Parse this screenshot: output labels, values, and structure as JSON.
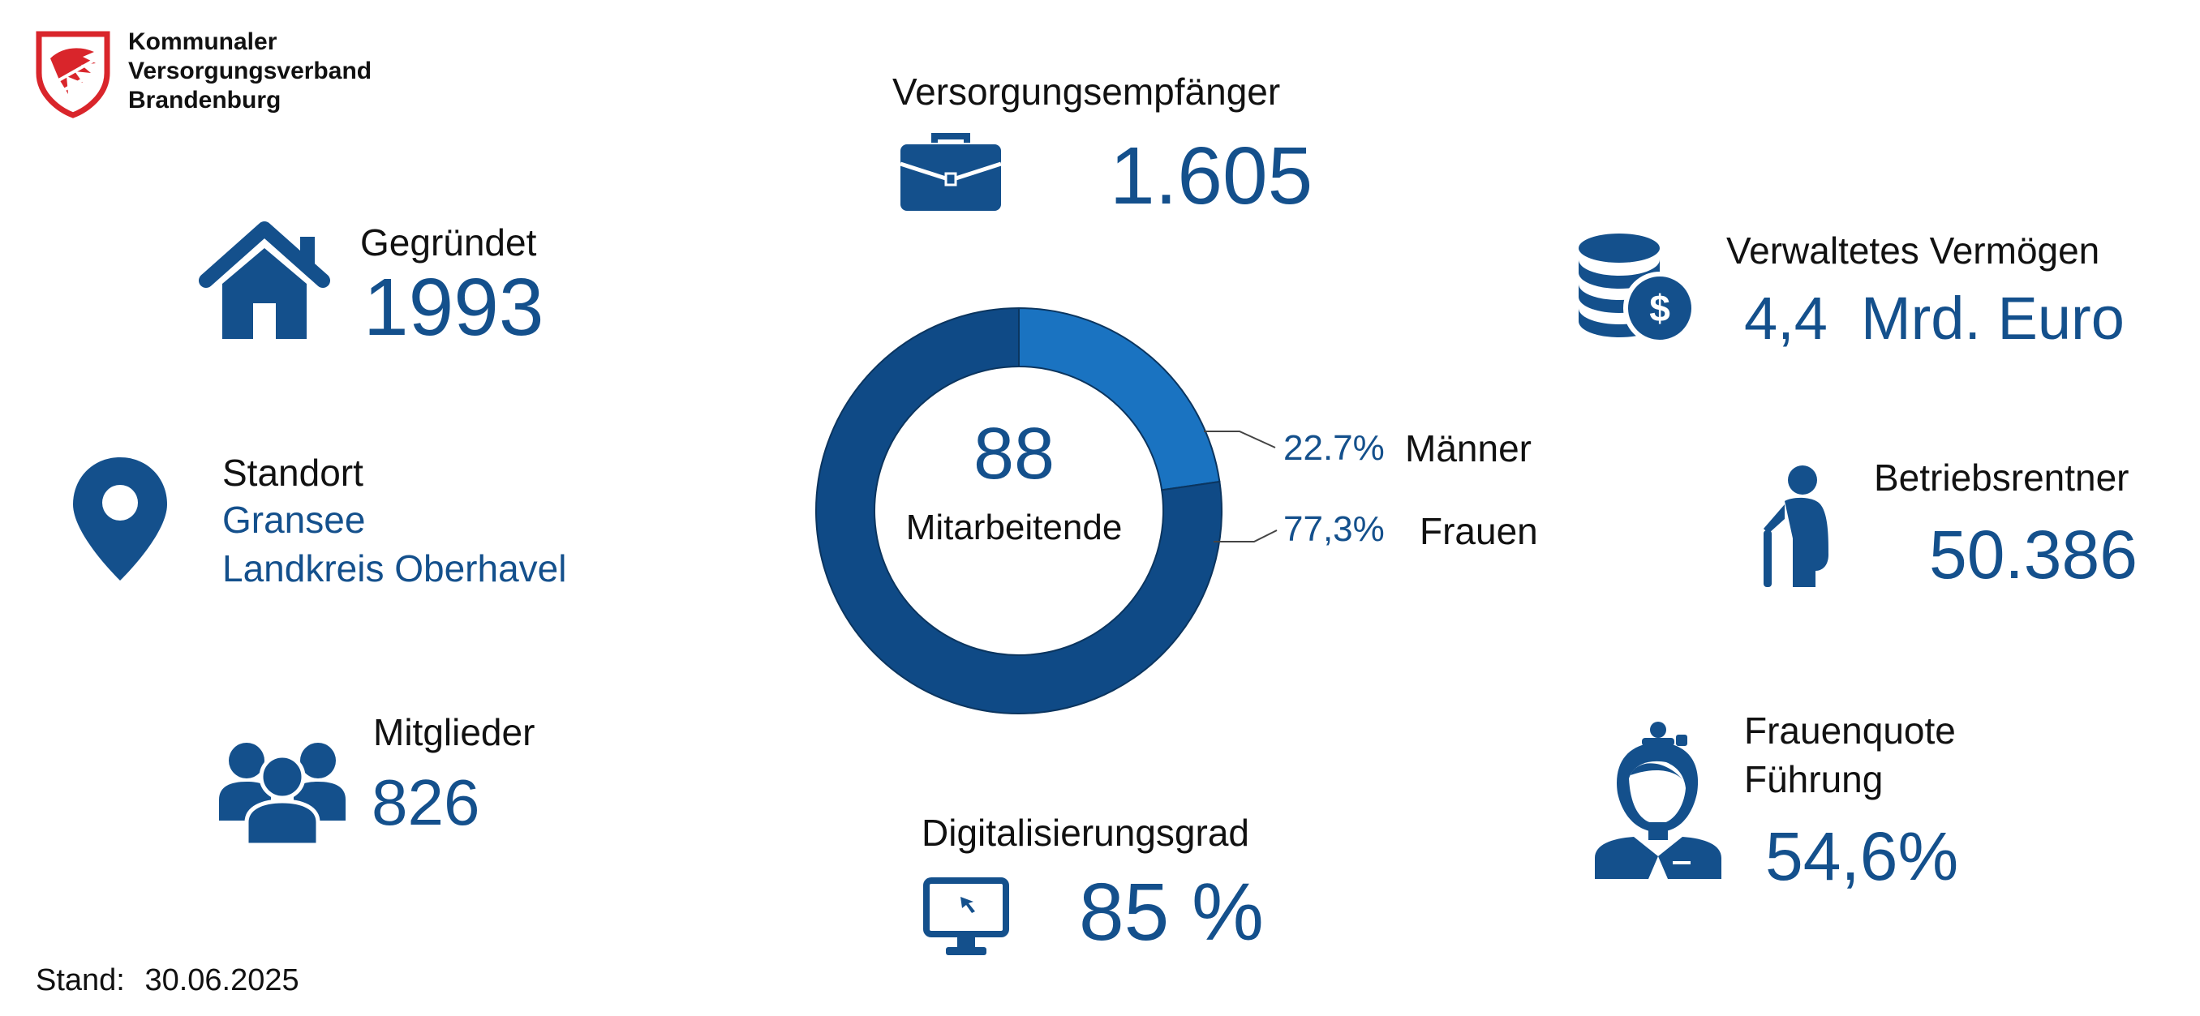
{
  "logo": {
    "line1": "Kommunaler",
    "line2": "Versorgungsverband",
    "line3": "Brandenburg"
  },
  "colors": {
    "primary": "#14508c",
    "dark_blue": "#0f4a86",
    "light_blue": "#1a73c1",
    "logo_red": "#d9252b"
  },
  "icons": [
    "house-icon",
    "map-pin-icon",
    "people-icon",
    "briefcase-icon",
    "monitor-icon",
    "coins-icon",
    "elderly-person-icon",
    "businesswoman-icon"
  ],
  "founded": {
    "label": "Gegründet",
    "value": "1993"
  },
  "location": {
    "label": "Standort",
    "line1": "Gransee",
    "line2": "Landkreis Oberhavel"
  },
  "members": {
    "label": "Mitglieder",
    "value": "826"
  },
  "recipients": {
    "label": "Versorgungsempfänger",
    "value": "1.605"
  },
  "digital": {
    "label": "Digitalisierungsgrad",
    "value": "85 %"
  },
  "assets": {
    "label": "Verwaltetes Vermögen",
    "value": "4,4  Mrd. Euro"
  },
  "pensioners": {
    "label": "Betriebsrentner",
    "value": "50.386"
  },
  "women_quota": {
    "label_line1": "Frauenquote",
    "label_line2": "Führung",
    "value": "54,6%"
  },
  "footer": {
    "label": "Stand:",
    "date": "30.06.2025"
  },
  "chart_data": {
    "type": "pie",
    "center_value": "88",
    "center_label": "Mitarbeitende",
    "slices": [
      {
        "name": "Männer",
        "value": 22.7,
        "value_label": "22.7%",
        "color": "#1a73c1"
      },
      {
        "name": "Frauen",
        "value": 77.3,
        "value_label": "77,3%",
        "color": "#0f4a86"
      }
    ]
  }
}
